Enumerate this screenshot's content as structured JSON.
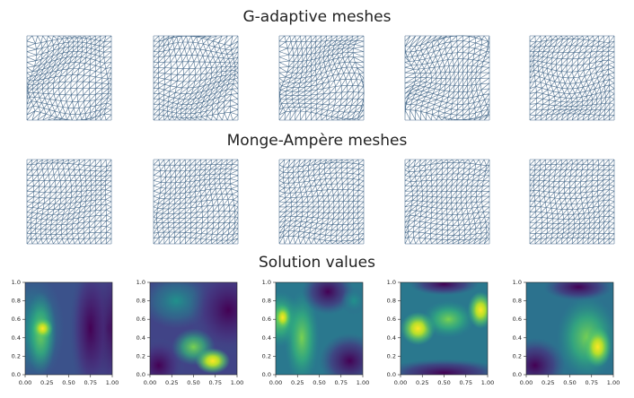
{
  "titles": [
    "G-adaptive meshes",
    "Monge-Ampère meshes",
    "Solution values"
  ],
  "chart_data": [
    {
      "type": "heatmap",
      "xlim": [
        0,
        1
      ],
      "ylim": [
        0,
        1
      ],
      "xticks": [
        {
          "value": 0,
          "label": "0.00"
        },
        {
          "value": 0.25,
          "label": "0.25"
        },
        {
          "value": 0.5,
          "label": "0.50"
        },
        {
          "value": 0.75,
          "label": "0.75"
        },
        {
          "value": 1,
          "label": "1.00"
        }
      ],
      "yticks": [
        {
          "value": 0,
          "label": "0.0"
        },
        {
          "value": 0.2,
          "label": "0.2"
        },
        {
          "value": 0.4,
          "label": "0.4"
        },
        {
          "value": 0.6,
          "label": "0.6"
        },
        {
          "value": 0.8,
          "label": "0.8"
        },
        {
          "value": 1,
          "label": "1.0"
        }
      ]
    },
    {
      "type": "heatmap",
      "xlim": [
        0,
        1
      ],
      "ylim": [
        0,
        1
      ],
      "xticks": [
        {
          "value": 0,
          "label": "0.00"
        },
        {
          "value": 0.25,
          "label": "0.25"
        },
        {
          "value": 0.5,
          "label": "0.50"
        },
        {
          "value": 0.75,
          "label": "0.75"
        },
        {
          "value": 1,
          "label": "1.00"
        }
      ],
      "yticks": [
        {
          "value": 0,
          "label": "0.0"
        },
        {
          "value": 0.2,
          "label": "0.2"
        },
        {
          "value": 0.4,
          "label": "0.4"
        },
        {
          "value": 0.6,
          "label": "0.6"
        },
        {
          "value": 0.8,
          "label": "0.8"
        },
        {
          "value": 1,
          "label": "1.0"
        }
      ]
    },
    {
      "type": "heatmap",
      "xlim": [
        0,
        1
      ],
      "ylim": [
        0,
        1
      ],
      "xticks": [
        {
          "value": 0,
          "label": "0.00"
        },
        {
          "value": 0.25,
          "label": "0.25"
        },
        {
          "value": 0.5,
          "label": "0.50"
        },
        {
          "value": 0.75,
          "label": "0.75"
        },
        {
          "value": 1,
          "label": "1.00"
        }
      ],
      "yticks": [
        {
          "value": 0,
          "label": "0.0"
        },
        {
          "value": 0.2,
          "label": "0.2"
        },
        {
          "value": 0.4,
          "label": "0.4"
        },
        {
          "value": 0.6,
          "label": "0.6"
        },
        {
          "value": 0.8,
          "label": "0.8"
        },
        {
          "value": 1,
          "label": "1.0"
        }
      ]
    },
    {
      "type": "heatmap",
      "xlim": [
        0,
        1
      ],
      "ylim": [
        0,
        1
      ],
      "xticks": [
        {
          "value": 0,
          "label": "0.00"
        },
        {
          "value": 0.25,
          "label": "0.25"
        },
        {
          "value": 0.5,
          "label": "0.50"
        },
        {
          "value": 0.75,
          "label": "0.75"
        },
        {
          "value": 1,
          "label": "1.00"
        }
      ],
      "yticks": [
        {
          "value": 0,
          "label": "0.0"
        },
        {
          "value": 0.2,
          "label": "0.2"
        },
        {
          "value": 0.4,
          "label": "0.4"
        },
        {
          "value": 0.6,
          "label": "0.6"
        },
        {
          "value": 0.8,
          "label": "0.8"
        },
        {
          "value": 1,
          "label": "1.0"
        }
      ]
    },
    {
      "type": "heatmap",
      "xlim": [
        0,
        1
      ],
      "ylim": [
        0,
        1
      ],
      "xticks": [
        {
          "value": 0,
          "label": "0.00"
        },
        {
          "value": 0.25,
          "label": "0.25"
        },
        {
          "value": 0.5,
          "label": "0.50"
        },
        {
          "value": 0.75,
          "label": "0.75"
        },
        {
          "value": 1,
          "label": "1.00"
        }
      ],
      "yticks": [
        {
          "value": 0,
          "label": "0.0"
        },
        {
          "value": 0.2,
          "label": "0.2"
        },
        {
          "value": 0.4,
          "label": "0.4"
        },
        {
          "value": 0.6,
          "label": "0.6"
        },
        {
          "value": 0.8,
          "label": "0.8"
        },
        {
          "value": 1,
          "label": "1.0"
        }
      ]
    }
  ]
}
